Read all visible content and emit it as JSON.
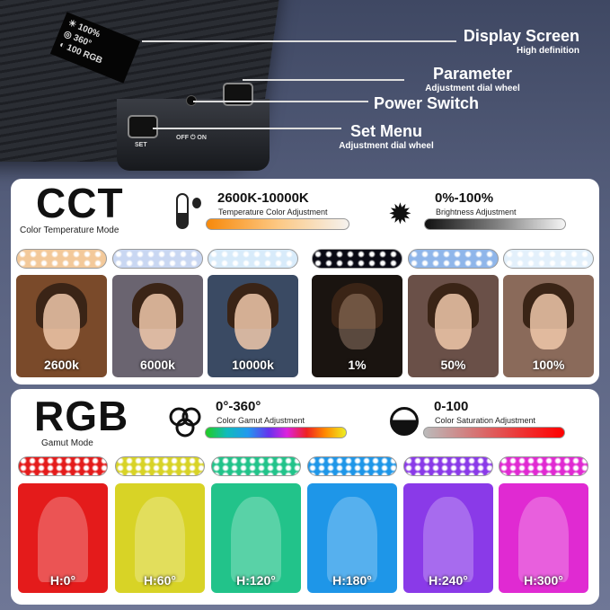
{
  "device": {
    "screen_lines": [
      "☀ 100%",
      "◎ 360°",
      "◐ 100 RGB"
    ],
    "buttons": {
      "set": "SET",
      "power": "OFF ⏻ ON"
    }
  },
  "callouts": [
    {
      "title": "Display Screen",
      "sub": "High definition"
    },
    {
      "title": "Parameter",
      "sub": "Adjustment dial wheel"
    },
    {
      "title": "Power Switch",
      "sub": ""
    },
    {
      "title": "Set Menu",
      "sub": "Adjustment dial wheel"
    }
  ],
  "cct": {
    "title": "CCT",
    "subtitle": "Color Temperature Mode",
    "temp": {
      "range": "2600K-10000K",
      "label": "Temperature Color Adjustment",
      "icon": "thermometer-icon"
    },
    "bright": {
      "range": "0%-100%",
      "label": "Brightness Adjustment",
      "icon": "sun-icon"
    },
    "tiles": [
      {
        "caption": "2600k",
        "strip": "#f3c99a",
        "tint": "#7a4a2a"
      },
      {
        "caption": "6000k",
        "strip": "#c9d7f2",
        "tint": "#6a6470"
      },
      {
        "caption": "10000k",
        "strip": "#d8ebfa",
        "tint": "#3a4a63"
      },
      {
        "caption": "1%",
        "strip": "#0a0a14",
        "tint": "#1a1410"
      },
      {
        "caption": "50%",
        "strip": "#8fb6ea",
        "tint": "#6a5048"
      },
      {
        "caption": "100%",
        "strip": "#e3f0fb",
        "tint": "#8a6a5a"
      }
    ]
  },
  "rgb": {
    "title": "RGB",
    "subtitle": "Gamut Mode",
    "hue": {
      "range": "0°-360°",
      "label": "Color Gamut Adjustment",
      "icon": "rgb-circles-icon"
    },
    "sat": {
      "range": "0-100",
      "label": "Color Saturation Adjustment",
      "icon": "half-circle-icon"
    },
    "tiles": [
      {
        "caption": "H:0°",
        "color": "#e41b1b"
      },
      {
        "caption": "H:60°",
        "color": "#d8d326"
      },
      {
        "caption": "H:120°",
        "color": "#22c38a"
      },
      {
        "caption": "H:180°",
        "color": "#1e96e8"
      },
      {
        "caption": "H:240°",
        "color": "#8a3ae8"
      },
      {
        "caption": "H:300°",
        "color": "#e02ad2"
      }
    ]
  }
}
